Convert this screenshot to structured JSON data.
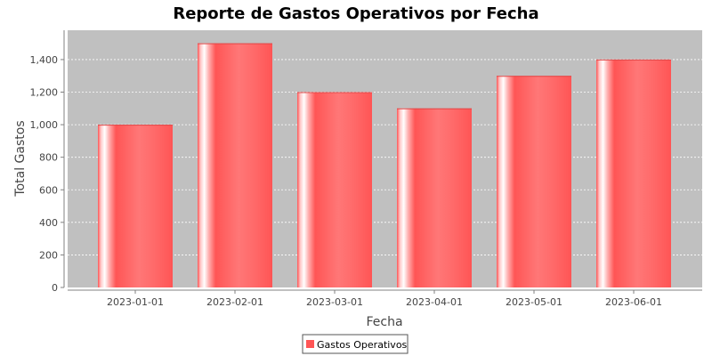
{
  "chart_data": {
    "type": "bar",
    "title": "Reporte de Gastos Operativos por Fecha",
    "xlabel": "Fecha",
    "ylabel": "Total Gastos",
    "categories": [
      "2023-01-01",
      "2023-02-01",
      "2023-03-01",
      "2023-04-01",
      "2023-05-01",
      "2023-06-01"
    ],
    "series": [
      {
        "name": "Gastos Operativos",
        "values": [
          1000,
          1500,
          1200,
          1100,
          1300,
          1400
        ]
      }
    ],
    "ylim": [
      0,
      1580
    ],
    "yticks": [
      0,
      200,
      400,
      600,
      800,
      1000,
      1200,
      1400
    ],
    "ytick_labels": [
      "0",
      "200",
      "400",
      "600",
      "800",
      "1,000",
      "1,200",
      "1,400"
    ],
    "grid": true,
    "legend": "bottom-center",
    "colors": {
      "bar": "#ff5555",
      "plot_background": "#c0c0c0",
      "gridline": "#ffffff"
    }
  }
}
